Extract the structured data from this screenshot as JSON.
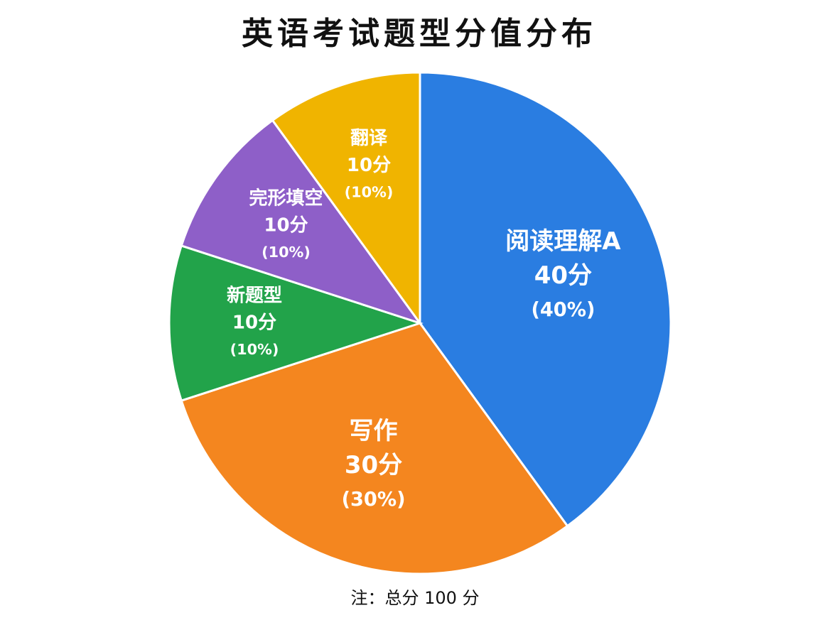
{
  "chart_data": {
    "type": "pie",
    "title": "英语考试题型分值分布",
    "categories": [
      "阅读理解A",
      "写作",
      "新题型",
      "完形填空",
      "翻译"
    ],
    "values": [
      40,
      30,
      10,
      10,
      10
    ],
    "value_labels": [
      "40分",
      "30分",
      "10分",
      "10分",
      "10分"
    ],
    "percent_labels": [
      "(40%)",
      "(30%)",
      "(10%)",
      "(10%)",
      "(10%)"
    ],
    "colors": [
      "#2a7de1",
      "#f4861f",
      "#22a34a",
      "#8e5fc8",
      "#f0b400"
    ],
    "note": "注：总分 100 分"
  }
}
